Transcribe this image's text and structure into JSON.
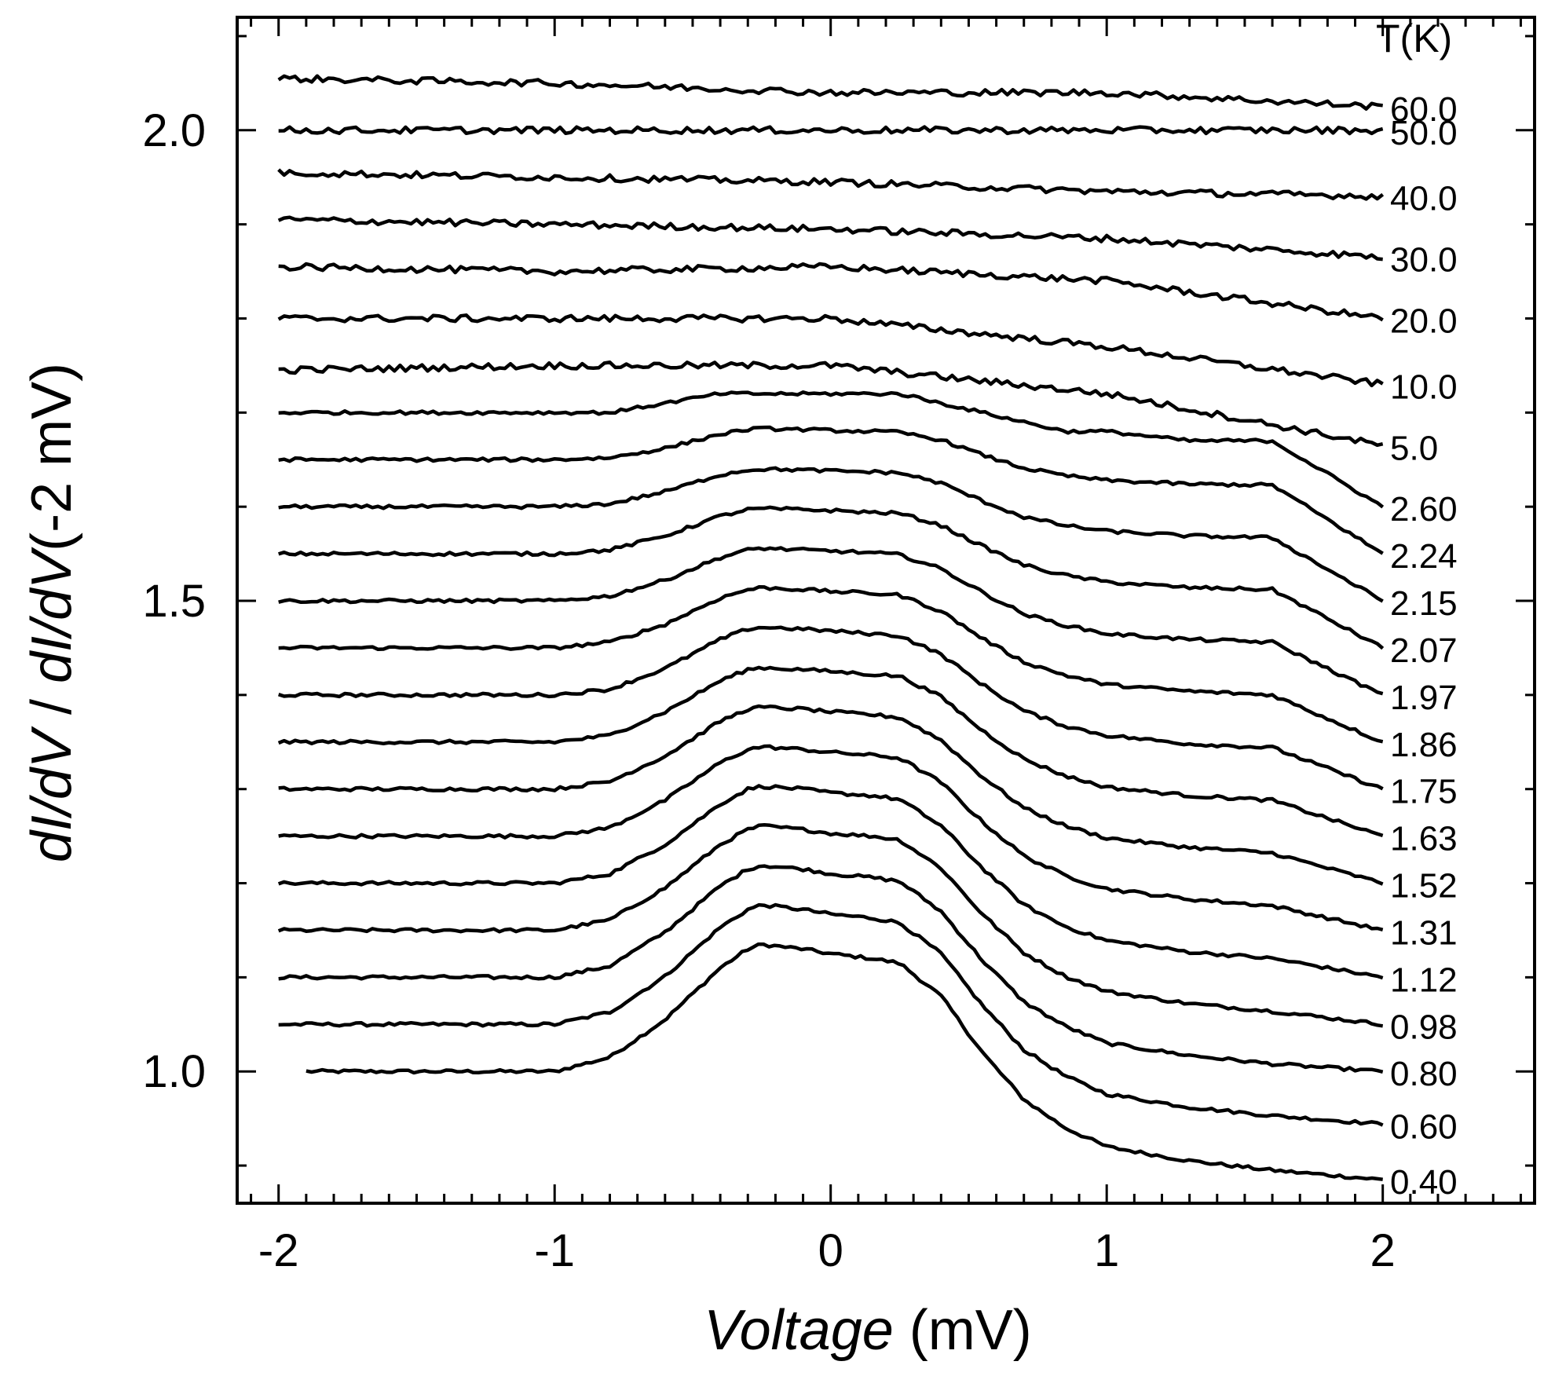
{
  "chart_data": {
    "type": "line",
    "xlabel": {
      "italic": "Voltage",
      "unit": " (mV)"
    },
    "ylabel": {
      "parts": [
        {
          "t": "dI/dV",
          "italic": true
        },
        {
          "t": " / ",
          "italic": false
        },
        {
          "t": "dI/dV",
          "italic": true
        },
        {
          "t": "(-2 mV)",
          "italic": false
        }
      ]
    },
    "legend_title": "T(K)",
    "xlim": [
      -2.15,
      2.55
    ],
    "ylim": [
      0.86,
      2.12
    ],
    "x_ticks": [
      -2,
      -1,
      0,
      1,
      2
    ],
    "x_tick_labels": [
      "-2",
      "-1",
      "0",
      "1",
      "2"
    ],
    "y_ticks": [
      1.0,
      1.5,
      2.0
    ],
    "y_tick_labels": [
      "1.0",
      "1.5",
      "2.0"
    ],
    "grid": false,
    "series": [
      {
        "name": "0.40",
        "x": [
          -1.9,
          -1.0,
          -0.8,
          -0.6,
          -0.4,
          -0.3,
          -0.25,
          -0.1,
          0.0,
          0.15,
          0.25,
          0.4,
          0.55,
          0.7,
          0.85,
          1.0,
          1.3,
          1.6,
          2.0
        ],
        "y": [
          1.0,
          1.0,
          1.015,
          1.055,
          1.11,
          1.13,
          1.135,
          1.13,
          1.125,
          1.12,
          1.115,
          1.08,
          1.02,
          0.97,
          0.94,
          0.92,
          0.905,
          0.895,
          0.885
        ]
      },
      {
        "name": "0.60",
        "x": [
          -2.0,
          -1.0,
          -0.8,
          -0.6,
          -0.4,
          -0.3,
          -0.25,
          -0.1,
          0.0,
          0.15,
          0.25,
          0.4,
          0.55,
          0.7,
          0.85,
          1.0,
          1.3,
          1.6,
          2.0
        ],
        "y": [
          1.05,
          1.05,
          1.063,
          1.101,
          1.153,
          1.172,
          1.177,
          1.172,
          1.167,
          1.163,
          1.158,
          1.125,
          1.07,
          1.023,
          0.995,
          0.976,
          0.962,
          0.953,
          0.944
        ]
      },
      {
        "name": "0.80",
        "x": [
          -2.0,
          -1.0,
          -0.8,
          -0.6,
          -0.4,
          -0.3,
          -0.25,
          -0.1,
          0.0,
          0.15,
          0.25,
          0.4,
          0.55,
          0.7,
          0.85,
          1.0,
          1.3,
          1.6,
          2.0
        ],
        "y": [
          1.1,
          1.1,
          1.112,
          1.148,
          1.197,
          1.215,
          1.219,
          1.215,
          1.21,
          1.206,
          1.202,
          1.17,
          1.118,
          1.074,
          1.048,
          1.03,
          1.017,
          1.008,
          1.0
        ]
      },
      {
        "name": "0.98",
        "x": [
          -2.0,
          -1.0,
          -0.8,
          -0.6,
          -0.4,
          -0.3,
          -0.25,
          -0.1,
          0.0,
          0.15,
          0.25,
          0.4,
          0.55,
          0.7,
          0.85,
          1.0,
          1.3,
          1.6,
          2.0
        ],
        "y": [
          1.15,
          1.15,
          1.161,
          1.195,
          1.241,
          1.257,
          1.261,
          1.257,
          1.253,
          1.25,
          1.246,
          1.216,
          1.167,
          1.126,
          1.101,
          1.085,
          1.072,
          1.064,
          1.05
        ]
      },
      {
        "name": "1.12",
        "x": [
          -2.0,
          -1.0,
          -0.8,
          -0.6,
          -0.4,
          -0.3,
          -0.25,
          -0.1,
          0.0,
          0.15,
          0.25,
          0.4,
          0.55,
          0.7,
          0.85,
          1.0,
          1.3,
          1.6,
          2.0
        ],
        "y": [
          1.2,
          1.2,
          1.21,
          1.241,
          1.284,
          1.3,
          1.303,
          1.3,
          1.296,
          1.293,
          1.289,
          1.261,
          1.216,
          1.177,
          1.154,
          1.139,
          1.127,
          1.12,
          1.1
        ]
      },
      {
        "name": "1.31",
        "x": [
          -2.0,
          -1.0,
          -0.8,
          -0.6,
          -0.4,
          -0.3,
          -0.25,
          -0.1,
          0.0,
          0.15,
          0.25,
          0.4,
          0.55,
          0.7,
          0.85,
          1.0,
          1.3,
          1.6,
          2.0
        ],
        "y": [
          1.25,
          1.25,
          1.259,
          1.288,
          1.328,
          1.342,
          1.345,
          1.342,
          1.339,
          1.336,
          1.333,
          1.307,
          1.265,
          1.229,
          1.208,
          1.194,
          1.183,
          1.176,
          1.15
        ]
      },
      {
        "name": "1.52",
        "x": [
          -2.0,
          -1.0,
          -0.8,
          -0.6,
          -0.4,
          -0.3,
          -0.25,
          -0.1,
          0.0,
          0.15,
          0.25,
          0.4,
          0.55,
          0.7,
          0.85,
          1.0,
          1.3,
          1.6,
          2.0
        ],
        "y": [
          1.3,
          1.3,
          1.308,
          1.335,
          1.372,
          1.385,
          1.387,
          1.385,
          1.382,
          1.379,
          1.376,
          1.352,
          1.313,
          1.28,
          1.261,
          1.248,
          1.238,
          1.232,
          1.2
        ]
      },
      {
        "name": "1.63",
        "x": [
          -2.0,
          -1.0,
          -0.8,
          -0.6,
          -0.4,
          -0.3,
          -0.25,
          -0.1,
          0.0,
          0.15,
          0.25,
          0.4,
          0.55,
          0.7,
          0.85,
          1.0,
          1.3,
          1.6,
          2.0
        ],
        "y": [
          1.35,
          1.35,
          1.357,
          1.382,
          1.415,
          1.427,
          1.429,
          1.427,
          1.425,
          1.422,
          1.42,
          1.398,
          1.362,
          1.332,
          1.314,
          1.302,
          1.293,
          1.288,
          1.25
        ]
      },
      {
        "name": "1.75",
        "x": [
          -2.0,
          -1.0,
          -0.8,
          -0.6,
          -0.4,
          -0.3,
          -0.25,
          -0.1,
          0.0,
          0.15,
          0.25,
          0.4,
          0.55,
          0.7,
          0.85,
          1.0,
          1.3,
          1.6,
          2.0
        ],
        "y": [
          1.4,
          1.4,
          1.406,
          1.428,
          1.459,
          1.47,
          1.472,
          1.47,
          1.468,
          1.465,
          1.463,
          1.443,
          1.411,
          1.383,
          1.367,
          1.357,
          1.348,
          1.344,
          1.3
        ]
      },
      {
        "name": "1.86",
        "x": [
          -2.0,
          -1.0,
          -0.8,
          -0.6,
          -0.4,
          -0.3,
          -0.25,
          -0.1,
          0.0,
          0.15,
          0.25,
          0.4,
          0.55,
          0.7,
          0.85,
          1.0,
          1.3,
          1.6,
          2.0
        ],
        "y": [
          1.45,
          1.45,
          1.456,
          1.475,
          1.503,
          1.512,
          1.514,
          1.512,
          1.51,
          1.508,
          1.506,
          1.489,
          1.46,
          1.435,
          1.421,
          1.411,
          1.404,
          1.4,
          1.35
        ]
      },
      {
        "name": "1.97",
        "x": [
          -2.0,
          -1.0,
          -0.8,
          -0.6,
          -0.4,
          -0.3,
          -0.25,
          -0.1,
          0.0,
          0.15,
          0.25,
          0.4,
          0.55,
          0.7,
          0.85,
          1.0,
          1.3,
          1.6,
          2.0
        ],
        "y": [
          1.5,
          1.5,
          1.505,
          1.522,
          1.546,
          1.554,
          1.556,
          1.554,
          1.553,
          1.551,
          1.549,
          1.534,
          1.509,
          1.486,
          1.474,
          1.465,
          1.459,
          1.456,
          1.4
        ]
      },
      {
        "name": "2.07",
        "x": [
          -2.0,
          -1.0,
          -0.8,
          -0.6,
          -0.4,
          -0.3,
          -0.25,
          -0.1,
          0.0,
          0.15,
          0.25,
          0.4,
          0.55,
          0.7,
          0.85,
          1.0,
          1.3,
          1.6,
          2.0
        ],
        "y": [
          1.55,
          1.55,
          1.554,
          1.569,
          1.59,
          1.597,
          1.598,
          1.597,
          1.596,
          1.594,
          1.593,
          1.58,
          1.558,
          1.538,
          1.527,
          1.52,
          1.514,
          1.512,
          1.45
        ]
      },
      {
        "name": "2.15",
        "x": [
          -2.0,
          -1.0,
          -0.8,
          -0.6,
          -0.4,
          -0.3,
          -0.25,
          -0.1,
          0.0,
          0.15,
          0.25,
          0.4,
          0.55,
          0.7,
          0.85,
          1.0,
          1.3,
          1.6,
          2.0
        ],
        "y": [
          1.6,
          1.6,
          1.603,
          1.616,
          1.634,
          1.639,
          1.64,
          1.639,
          1.638,
          1.637,
          1.636,
          1.625,
          1.606,
          1.589,
          1.58,
          1.574,
          1.569,
          1.567,
          1.5
        ]
      },
      {
        "name": "2.24",
        "x": [
          -2.0,
          -1.0,
          -0.8,
          -0.6,
          -0.4,
          -0.3,
          -0.25,
          -0.1,
          0.0,
          0.15,
          0.25,
          0.4,
          0.55,
          0.7,
          0.85,
          1.0,
          1.3,
          1.6,
          2.0
        ],
        "y": [
          1.65,
          1.65,
          1.652,
          1.662,
          1.677,
          1.682,
          1.683,
          1.682,
          1.681,
          1.68,
          1.679,
          1.671,
          1.655,
          1.641,
          1.633,
          1.628,
          1.624,
          1.623,
          1.55
        ]
      },
      {
        "name": "2.60",
        "x": [
          -2.0,
          -1.0,
          -0.8,
          -0.6,
          -0.4,
          -0.3,
          -0.25,
          -0.1,
          0.0,
          0.15,
          0.25,
          0.4,
          0.55,
          0.7,
          0.85,
          1.0,
          1.3,
          1.6,
          2.0
        ],
        "y": [
          1.7,
          1.7,
          1.7,
          1.71,
          1.72,
          1.72,
          1.72,
          1.72,
          1.72,
          1.72,
          1.72,
          1.71,
          1.7,
          1.69,
          1.68,
          1.68,
          1.67,
          1.67,
          1.6
        ]
      },
      {
        "name": "5.0",
        "x": [
          -2.0,
          -1.0,
          0.0,
          1.0,
          2.0
        ],
        "y": [
          1.745,
          1.75,
          1.75,
          1.72,
          1.665
        ]
      },
      {
        "name": "10.0",
        "x": [
          -2.0,
          -1.0,
          0.0,
          1.0,
          2.0
        ],
        "y": [
          1.8,
          1.8,
          1.8,
          1.77,
          1.73
        ]
      },
      {
        "name": "20.0",
        "x": [
          -2.0,
          -1.0,
          0.0,
          1.0,
          2.0
        ],
        "y": [
          1.855,
          1.85,
          1.855,
          1.84,
          1.8
        ]
      },
      {
        "name": "30.0",
        "x": [
          -2.0,
          -1.0,
          0.0,
          1.0,
          2.0
        ],
        "y": [
          1.905,
          1.9,
          1.895,
          1.885,
          1.865
        ]
      },
      {
        "name": "40.0",
        "x": [
          -2.0,
          -1.0,
          0.0,
          1.0,
          2.0
        ],
        "y": [
          1.955,
          1.95,
          1.945,
          1.935,
          1.93
        ]
      },
      {
        "name": "50.0",
        "x": [
          -2.0,
          -1.0,
          0.0,
          1.0,
          2.0
        ],
        "y": [
          2.0,
          2.0,
          2.0,
          2.0,
          2.0
        ]
      },
      {
        "name": "60.0",
        "x": [
          -2.0,
          -1.0,
          0.0,
          1.0,
          2.0
        ],
        "y": [
          2.055,
          2.05,
          2.04,
          2.04,
          2.025
        ]
      }
    ]
  }
}
